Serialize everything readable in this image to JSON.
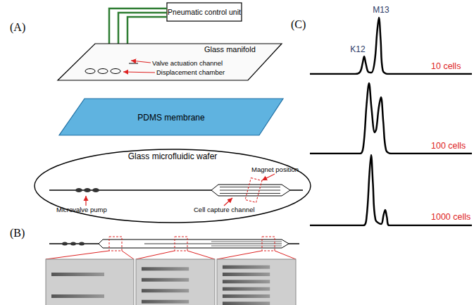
{
  "panels": {
    "A": {
      "label": "(A)",
      "control_unit": "Pneumatic control unit",
      "manifold": "Glass manifold",
      "manifold_labels": [
        "Valve actuation channel",
        "Displacement chamber"
      ],
      "membrane": "PDMS membrane",
      "wafer": "Glass microfluidic wafer",
      "wafer_labels": {
        "magnet": "Magnet position",
        "pump": "Microvalve pump",
        "capture": "Cell capture channel"
      }
    },
    "B": {
      "label": "(B)"
    },
    "C": {
      "label": "(C)",
      "peak_labels": [
        "K12",
        "M13"
      ]
    }
  },
  "chart_data": {
    "type": "line",
    "xlim": [
      0,
      100
    ],
    "ylim": [
      0,
      100
    ],
    "tick_labels": false,
    "grid": false,
    "series": [
      {
        "name": "10 cells",
        "color": "#000000",
        "x": [
          0,
          28,
          31,
          32.5,
          33.5,
          34.5,
          36,
          38,
          40,
          41.5,
          42.6,
          43.7,
          45,
          48,
          100
        ],
        "values": [
          0,
          0,
          3,
          15,
          25,
          15,
          3,
          2,
          18,
          60,
          80,
          48,
          5,
          0,
          0
        ]
      },
      {
        "name": "100 cells",
        "color": "#000000",
        "x": [
          0,
          31,
          33,
          35,
          36.5,
          38,
          40,
          41,
          42.5,
          43.9,
          45.3,
          47,
          50,
          100
        ],
        "values": [
          0,
          0,
          10,
          70,
          100,
          65,
          30,
          35,
          65,
          80,
          45,
          5,
          0,
          0
        ]
      },
      {
        "name": "1000 cells",
        "color": "#000000",
        "x": [
          0,
          33,
          35,
          36.8,
          37.8,
          38.9,
          40.5,
          44,
          45.5,
          46.5,
          47.5,
          49,
          100
        ],
        "values": [
          0,
          0,
          12,
          75,
          100,
          60,
          8,
          2,
          15,
          22,
          12,
          0,
          0
        ]
      }
    ]
  }
}
